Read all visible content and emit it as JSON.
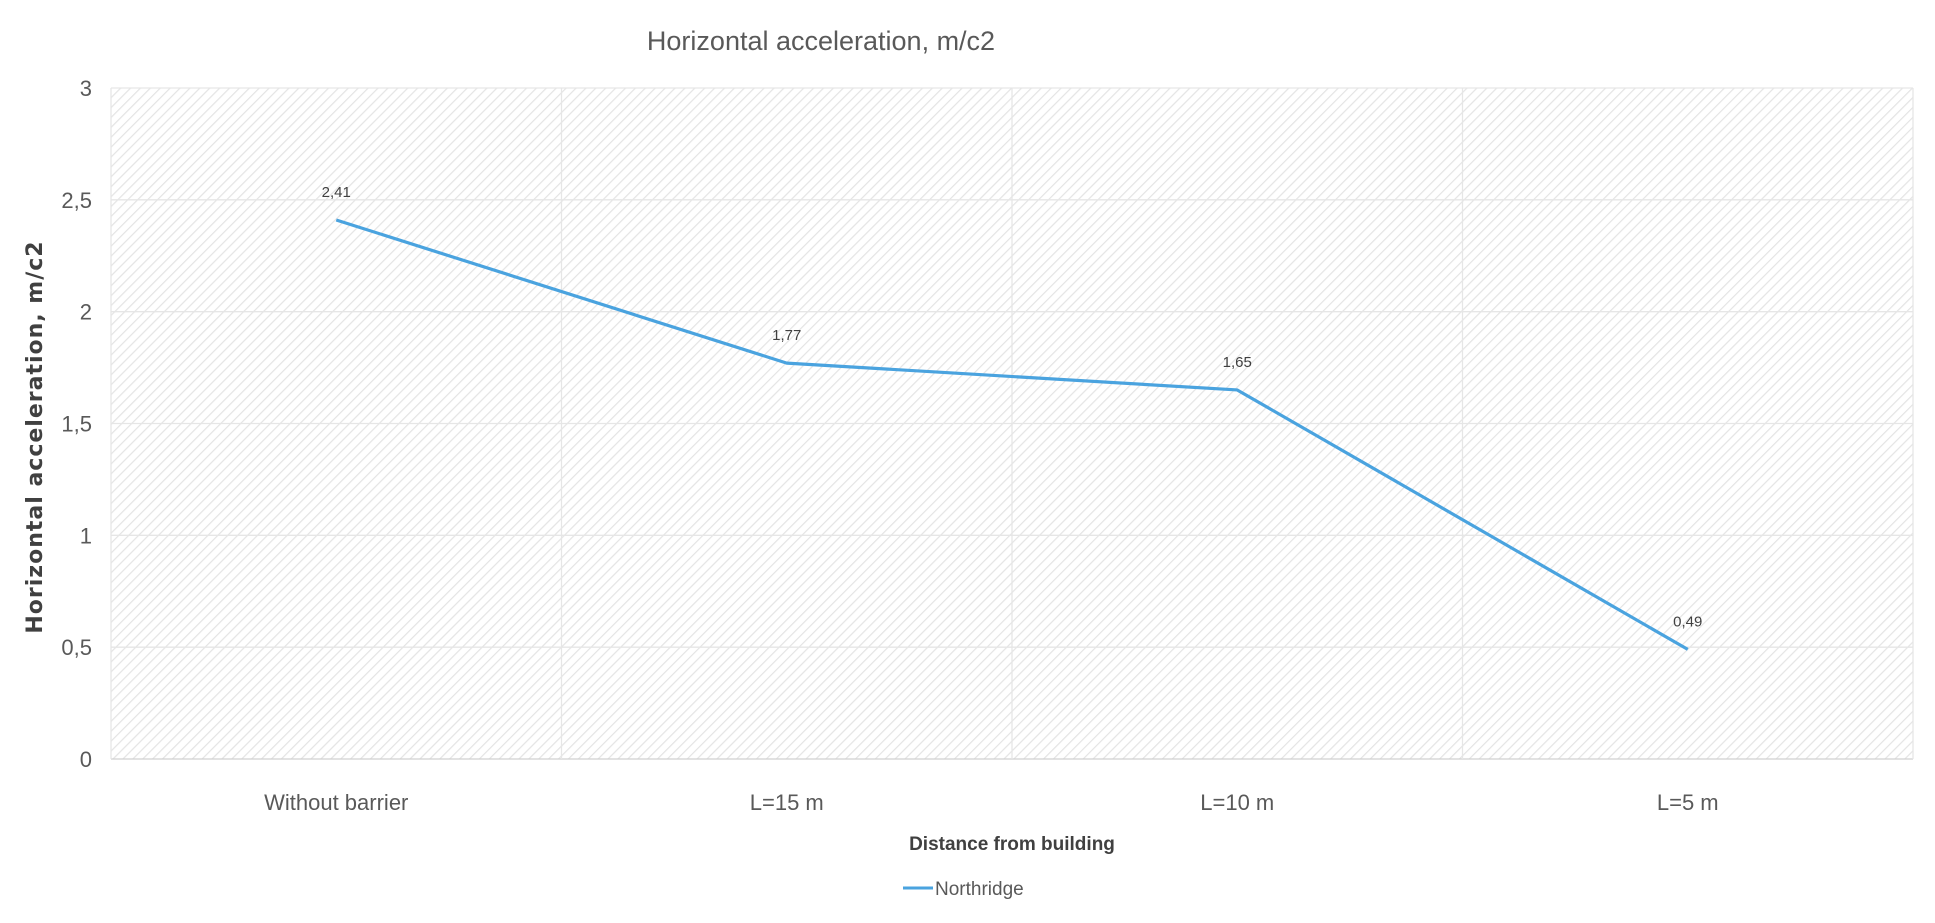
{
  "chart_data": {
    "type": "line",
    "title": "Horizontal acceleration, m/c2",
    "xlabel": "Distance from building",
    "ylabel": "Horizontal acceleration, m/c2",
    "categories": [
      "Without barrier",
      "L=15 m",
      "L=10 m",
      "L=5 m"
    ],
    "series": [
      {
        "name": "Northridge",
        "values": [
          2.41,
          1.77,
          1.65,
          0.49
        ],
        "labels": [
          "2,41",
          "1,77",
          "1,65",
          "0,49"
        ],
        "color": "#4aa3df"
      }
    ],
    "ylim": [
      0,
      3
    ],
    "yticks": [
      "0",
      "0,5",
      "1",
      "1,5",
      "2",
      "2,5",
      "3"
    ],
    "grid": true,
    "legend": "bottom-center"
  }
}
